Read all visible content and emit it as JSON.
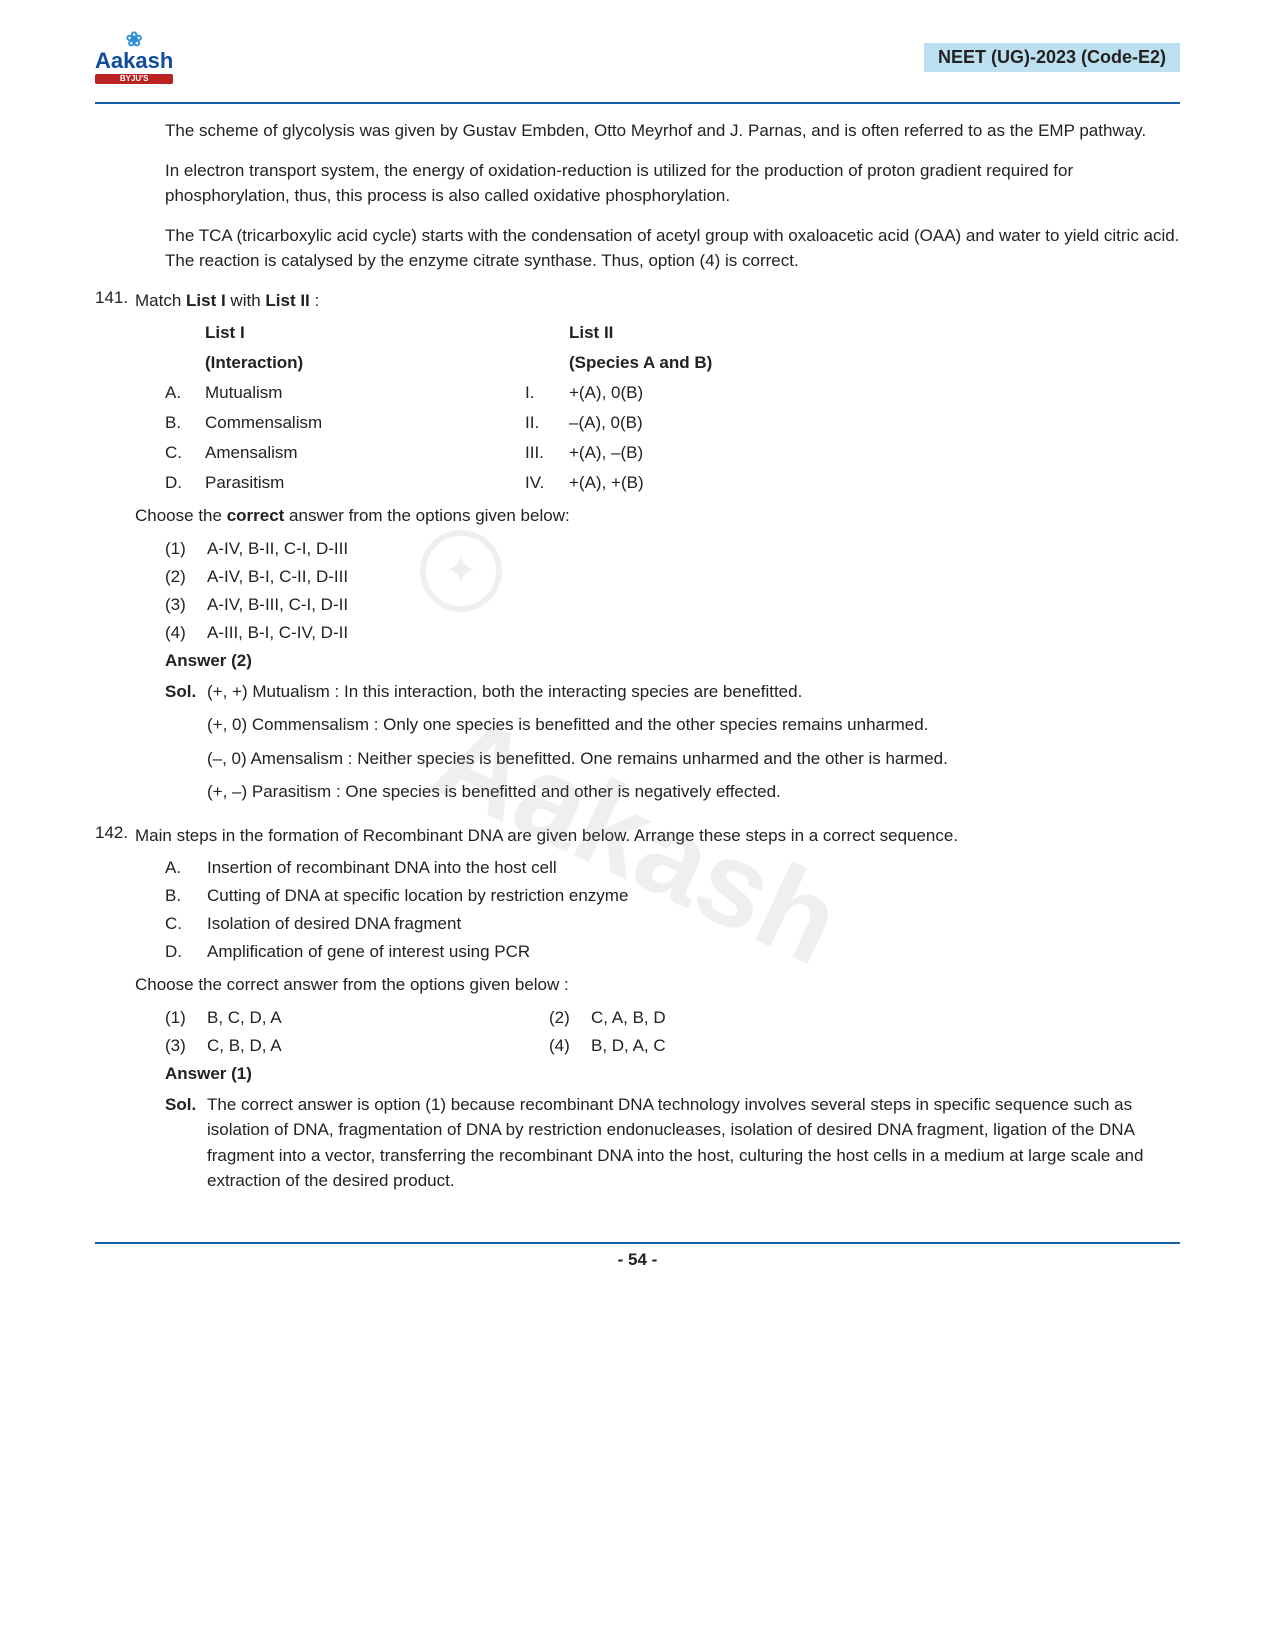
{
  "header": {
    "logo_top": "❀",
    "logo_main": "Aakash",
    "logo_sub": "BYJU'S",
    "right": "NEET (UG)-2023 (Code-E2)"
  },
  "colors": {
    "rule": "#1b5fa8",
    "header_bg": "#bde0f0",
    "logo": "#0f4c9c"
  },
  "intro": {
    "p1": "The scheme of glycolysis was given by Gustav Embden, Otto Meyrhof and J. Parnas, and is often referred to as the EMP pathway.",
    "p2": "In electron transport system, the energy of oxidation-reduction is utilized for the production of proton gradient required for phosphorylation, thus, this process is also called oxidative phosphorylation.",
    "p3": "The TCA (tricarboxylic acid cycle) starts with the condensation of acetyl group with oxaloacetic acid (OAA) and water to yield citric acid. The reaction is catalysed by the enzyme citrate synthase. Thus, option (4) is correct."
  },
  "q141": {
    "num": "141.",
    "stem_pre": "Match ",
    "stem_b1": "List I",
    "stem_mid": " with ",
    "stem_b2": "List II",
    "stem_post": " :",
    "h_list1": "List I",
    "h_list1_sub": "(Interaction)",
    "h_list2": "List II",
    "h_list2_sub": "(Species A and B)",
    "rows": [
      {
        "a": "A.",
        "l": "Mutualism",
        "r": "I.",
        "v": "+(A), 0(B)"
      },
      {
        "a": "B.",
        "l": "Commensalism",
        "r": "II.",
        "v": "–(A), 0(B)"
      },
      {
        "a": "C.",
        "l": "Amensalism",
        "r": "III.",
        "v": "+(A), –(B)"
      },
      {
        "a": "D.",
        "l": "Parasitism",
        "r": "IV.",
        "v": "+(A), +(B)"
      }
    ],
    "choose_pre": "Choose the ",
    "choose_b": "correct",
    "choose_post": " answer from the options given below:",
    "opts": [
      {
        "n": "(1)",
        "t": "A-IV, B-II, C-I, D-III"
      },
      {
        "n": "(2)",
        "t": "A-IV, B-I, C-II, D-III"
      },
      {
        "n": "(3)",
        "t": "A-IV, B-III, C-I, D-II"
      },
      {
        "n": "(4)",
        "t": "A-III, B-I, C-IV, D-II"
      }
    ],
    "answer": "Answer (2)",
    "sol_label": "Sol.",
    "sol1": "(+, +) Mutualism : In this interaction, both the interacting species are benefitted.",
    "sol2": "(+, 0) Commensalism : Only one species is benefitted and the other species remains unharmed.",
    "sol3": "(–, 0) Amensalism : Neither species is benefitted. One remains unharmed and the other is harmed.",
    "sol4": "(+, –) Parasitism : One species is benefitted and other is negatively effected."
  },
  "q142": {
    "num": "142.",
    "stem": "Main steps in the formation of Recombinant DNA are given below. Arrange these steps in a correct sequence.",
    "items": [
      {
        "l": "A.",
        "t": "Insertion of recombinant DNA into the host cell"
      },
      {
        "l": "B.",
        "t": "Cutting of DNA at specific location by restriction enzyme"
      },
      {
        "l": "C.",
        "t": "Isolation of desired DNA fragment"
      },
      {
        "l": "D.",
        "t": "Amplification of gene of interest using PCR"
      }
    ],
    "choose": "Choose the correct answer from the options given below :",
    "opts": [
      {
        "n": "(1)",
        "t": "B, C, D, A"
      },
      {
        "n": "(2)",
        "t": "C, A, B, D"
      },
      {
        "n": "(3)",
        "t": "C, B, D, A"
      },
      {
        "n": "(4)",
        "t": "B, D, A, C"
      }
    ],
    "answer": "Answer (1)",
    "sol_label": "Sol.",
    "sol": "The correct answer is option (1) because recombinant DNA technology involves several steps in specific sequence such as isolation of DNA, fragmentation of DNA by restriction endonucleases, isolation of desired DNA fragment, ligation of the DNA fragment into a vector, transferring the recombinant DNA into the host, culturing the host cells in a medium at large scale and extraction of the desired product."
  },
  "footer": {
    "page": "- 54 -"
  },
  "watermark": "Aakash"
}
